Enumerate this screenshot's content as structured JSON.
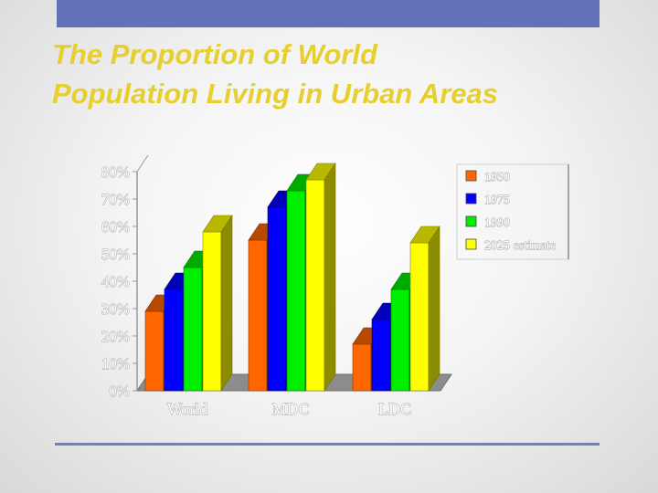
{
  "slide": {
    "title": "The Proportion of World\nPopulation Living in Urban Areas"
  },
  "colors": {
    "top_bar": "#6272b8",
    "title_text": "#e6cf2e",
    "rule": "#6f7fc0",
    "series": [
      "#ff6600",
      "#0000ff",
      "#00ee00",
      "#ffff00"
    ]
  },
  "chart_data": {
    "type": "bar",
    "style": "3d-clustered-column",
    "categories": [
      "World",
      "MDC",
      "LDC"
    ],
    "series": [
      {
        "name": "1950",
        "values": [
          29,
          55,
          17
        ]
      },
      {
        "name": "1975",
        "values": [
          37,
          67,
          26
        ]
      },
      {
        "name": "1990",
        "values": [
          45,
          73,
          37
        ]
      },
      {
        "name": "2025 estimate",
        "values": [
          58,
          77,
          54
        ]
      }
    ],
    "y_ticks": [
      "0%",
      "10%",
      "20%",
      "30%",
      "40%",
      "50%",
      "60%",
      "70%",
      "80%"
    ],
    "ylim": [
      0,
      80
    ],
    "legend_position": "right",
    "grid": false
  }
}
